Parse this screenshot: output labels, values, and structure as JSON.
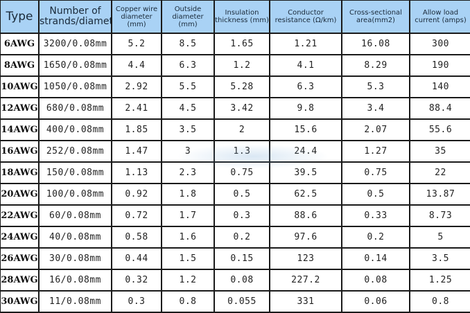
{
  "table": {
    "headers": [
      "Type",
      "Number of strands/diameter",
      "Copper wire diameter (mm)",
      "Outside diameter (mm)",
      "Insulation thickness (mm)",
      "Conductor resistance (Ω/km)",
      "Cross-sectional area(mm2)",
      "Allow load current (amps)"
    ],
    "rows": [
      [
        "6AWG",
        "3200/0.08mm",
        "5.2",
        "8.5",
        "1.65",
        "1.21",
        "16.08",
        "300"
      ],
      [
        "8AWG",
        "1650/0.08mm",
        "4.4",
        "6.3",
        "1.2",
        "4.1",
        "8.29",
        "190"
      ],
      [
        "10AWG",
        "1050/0.08mm",
        "2.92",
        "5.5",
        "5.28",
        "6.3",
        "5.3",
        "140"
      ],
      [
        "12AWG",
        "680/0.08mm",
        "2.41",
        "4.5",
        "3.42",
        "9.8",
        "3.4",
        "88.4"
      ],
      [
        "14AWG",
        "400/0.08mm",
        "1.85",
        "3.5",
        "2",
        "15.6",
        "2.07",
        "55.6"
      ],
      [
        "16AWG",
        "252/0.08mm",
        "1.47",
        "3",
        "1.3",
        "24.4",
        "1.27",
        "35"
      ],
      [
        "18AWG",
        "150/0.08mm",
        "1.13",
        "2.3",
        "0.75",
        "39.5",
        "0.75",
        "22"
      ],
      [
        "20AWG",
        "100/0.08mm",
        "0.92",
        "1.8",
        "0.5",
        "62.5",
        "0.5",
        "13.87"
      ],
      [
        "22AWG",
        "60/0.08mm",
        "0.72",
        "1.7",
        "0.3",
        "88.6",
        "0.33",
        "8.73"
      ],
      [
        "24AWG",
        "40/0.08mm",
        "0.58",
        "1.6",
        "0.2",
        "97.6",
        "0.2",
        "5"
      ],
      [
        "26AWG",
        "30/0.08mm",
        "0.44",
        "1.5",
        "0.15",
        "123",
        "0.14",
        "3.5"
      ],
      [
        "28AWG",
        "16/0.08mm",
        "0.32",
        "1.2",
        "0.08",
        "227.2",
        "0.08",
        "1.25"
      ],
      [
        "30AWG",
        "11/0.08mm",
        "0.3",
        "0.8",
        "0.055",
        "331",
        "0.06",
        "0.8"
      ]
    ]
  },
  "colors": {
    "header_bg": "#a9d2f5",
    "border": "#1a1a1a"
  }
}
